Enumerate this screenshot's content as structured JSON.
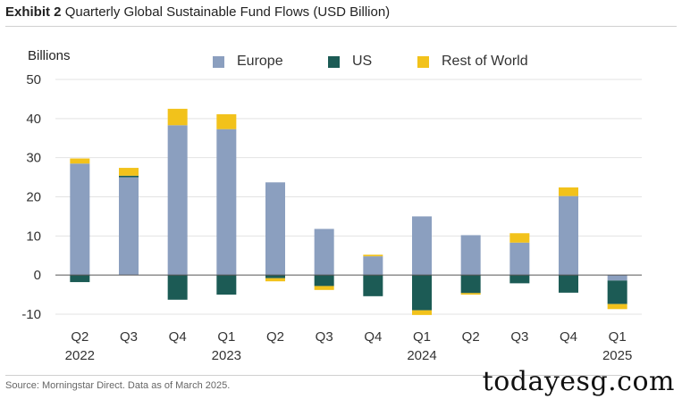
{
  "header": {
    "exhibit": "Exhibit 2",
    "title": "Quarterly Global Sustainable Fund Flows (USD Billion)"
  },
  "chart_data": {
    "type": "bar",
    "stacked": true,
    "ylabel": "Billions",
    "ylim": [
      -10,
      50
    ],
    "yticks": [
      50,
      40,
      30,
      20,
      10,
      0,
      -10
    ],
    "ytick_labels": [
      "50",
      "40",
      "30",
      "20",
      "10",
      "0",
      "-10"
    ],
    "categories": [
      "Q2",
      "Q3",
      "Q4",
      "Q1",
      "Q2",
      "Q3",
      "Q4",
      "Q1",
      "Q2",
      "Q3",
      "Q4",
      "Q1"
    ],
    "years": [
      "2022",
      "",
      "",
      "2023",
      "",
      "",
      "",
      "2024",
      "",
      "",
      "",
      "2025"
    ],
    "series": [
      {
        "name": "Europe",
        "color": "#8b9fbf",
        "values": [
          28.5,
          25,
          38.3,
          37.3,
          23.7,
          11.8,
          4.8,
          15,
          10.2,
          8.3,
          20.2,
          -1.4
        ]
      },
      {
        "name": "US",
        "color": "#1c5b55",
        "values": [
          -1.8,
          0.4,
          -6.3,
          -5,
          -0.8,
          -2.8,
          -5.4,
          -9,
          -4.6,
          -2.1,
          -4.5,
          -6
        ]
      },
      {
        "name": "Rest of World",
        "color": "#f2c21b",
        "values": [
          1.3,
          2,
          4.2,
          3.8,
          -0.8,
          -1,
          0.4,
          -1.2,
          -0.4,
          2.4,
          2.2,
          -1.3
        ]
      }
    ]
  },
  "footer": {
    "source": "Source: Morningstar Direct. Data as of March 2025.",
    "watermark": "todayesg.com"
  }
}
